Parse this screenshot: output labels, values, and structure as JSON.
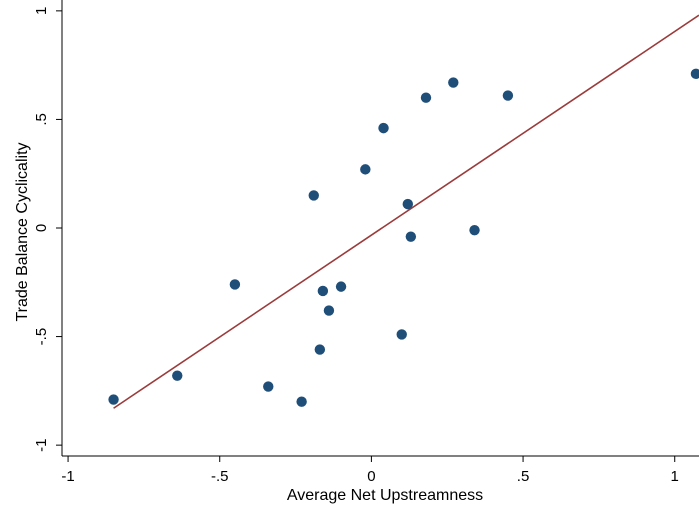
{
  "chart_data": {
    "type": "scatter",
    "title": "",
    "xlabel": "Average Net Upstreamness",
    "ylabel": "Trade Balance Cyclicality",
    "xlim": [
      -1.02,
      1.08
    ],
    "ylim": [
      -1.05,
      1.05
    ],
    "xticks": [
      -1,
      -0.5,
      0,
      0.5,
      1
    ],
    "xtick_labels": [
      "-1",
      "-.5",
      "0",
      ".5",
      "1"
    ],
    "yticks": [
      -1,
      -0.5,
      0,
      0.5,
      1
    ],
    "ytick_labels": [
      "-1",
      "-.5",
      "0",
      ".5",
      "1"
    ],
    "grid": false,
    "legend": "none",
    "colors": {
      "points": "#1f4e79",
      "fit_line": "#9b3b3b",
      "axis": "#000000"
    },
    "points": [
      {
        "x": -0.85,
        "y": -0.79
      },
      {
        "x": -0.64,
        "y": -0.68
      },
      {
        "x": -0.45,
        "y": -0.26
      },
      {
        "x": -0.34,
        "y": -0.73
      },
      {
        "x": -0.23,
        "y": -0.8
      },
      {
        "x": -0.19,
        "y": 0.15
      },
      {
        "x": -0.17,
        "y": -0.56
      },
      {
        "x": -0.16,
        "y": -0.29
      },
      {
        "x": -0.14,
        "y": -0.38
      },
      {
        "x": -0.1,
        "y": -0.27
      },
      {
        "x": -0.02,
        "y": 0.27
      },
      {
        "x": 0.04,
        "y": 0.46
      },
      {
        "x": 0.1,
        "y": -0.49
      },
      {
        "x": 0.12,
        "y": 0.11
      },
      {
        "x": 0.13,
        "y": -0.04
      },
      {
        "x": 0.18,
        "y": 0.6
      },
      {
        "x": 0.27,
        "y": 0.67
      },
      {
        "x": 0.34,
        "y": -0.01
      },
      {
        "x": 0.45,
        "y": 0.61
      },
      {
        "x": 1.07,
        "y": 0.71
      }
    ],
    "fit_line": {
      "x": [
        -0.85,
        1.08
      ],
      "y": [
        -0.83,
        0.98
      ]
    }
  }
}
